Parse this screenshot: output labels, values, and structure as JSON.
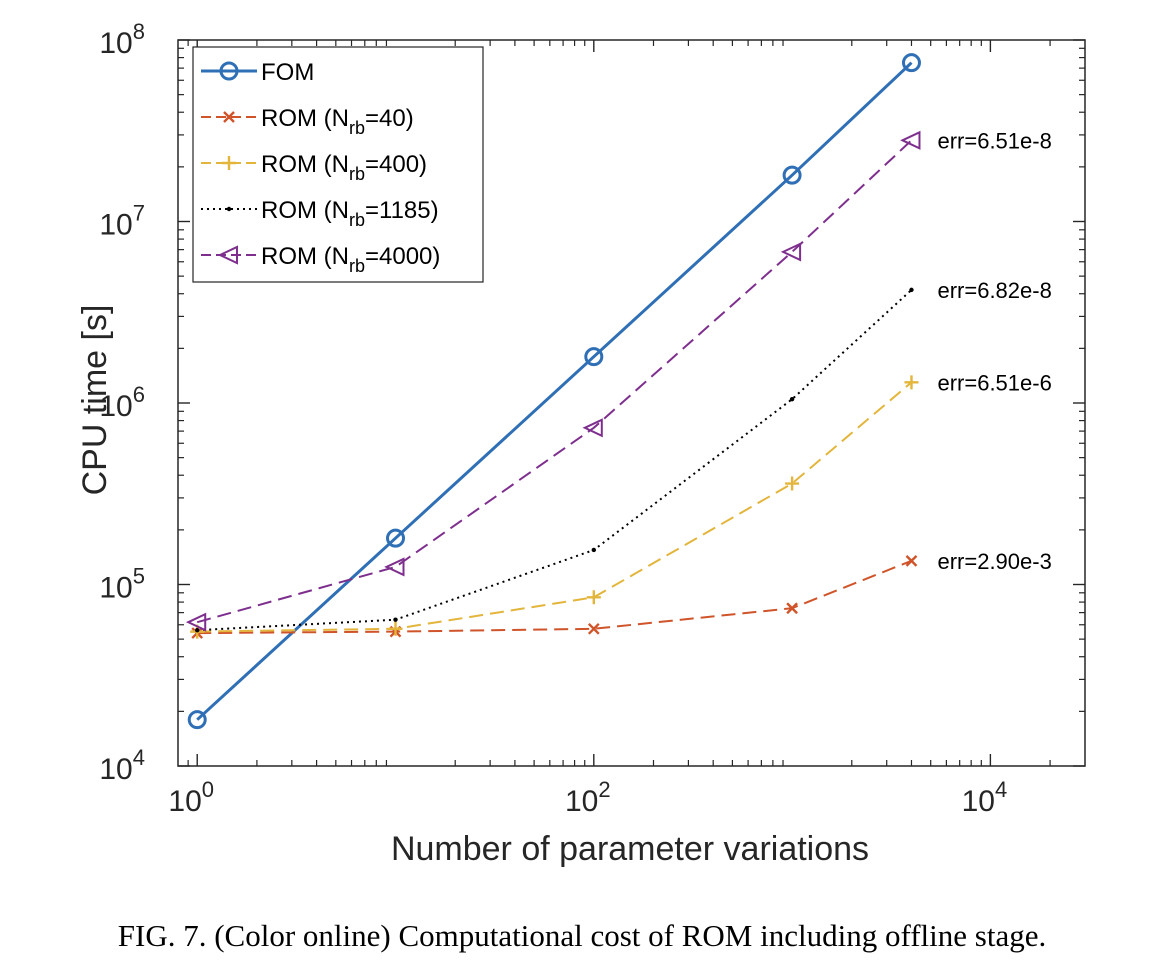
{
  "caption": "FIG. 7. (Color online) Computational cost of ROM including offline stage.",
  "chart_data": {
    "type": "line",
    "xscale": "log",
    "yscale": "log",
    "xlabel": "Number of parameter variations",
    "ylabel": "CPU time [s]",
    "xlim": [
      0.8,
      30000
    ],
    "ylim": [
      10000,
      100000000
    ],
    "grid": false,
    "legend_position": "top-left",
    "x_ticks": [
      {
        "value": 1,
        "base": "10",
        "exp": "0"
      },
      {
        "value": 100,
        "base": "10",
        "exp": "2"
      },
      {
        "value": 10000,
        "base": "10",
        "exp": "4"
      }
    ],
    "y_ticks": [
      {
        "value": 10000,
        "base": "10",
        "exp": "4"
      },
      {
        "value": 100000,
        "base": "10",
        "exp": "5"
      },
      {
        "value": 1000000,
        "base": "10",
        "exp": "6"
      },
      {
        "value": 10000000,
        "base": "10",
        "exp": "7"
      },
      {
        "value": 100000000,
        "base": "10",
        "exp": "8"
      }
    ],
    "series": [
      {
        "name": "FOM",
        "legend_prefix": "FOM",
        "legend_sub": "",
        "legend_suffix": "",
        "color": "#2f6fb5",
        "dash": "solid",
        "marker": "circle",
        "x": [
          1,
          10,
          100,
          1000,
          4000
        ],
        "y": [
          18000,
          180000,
          1800000,
          18000000,
          75000000
        ]
      },
      {
        "name": "ROM (Nrb=40)",
        "legend_prefix": "ROM (N",
        "legend_sub": "rb",
        "legend_suffix": "=40)",
        "color": "#d0542a",
        "dash": "dashed",
        "marker": "x",
        "x": [
          1,
          10,
          100,
          1000,
          4000
        ],
        "y": [
          54000,
          55000,
          57000,
          74000,
          135000
        ]
      },
      {
        "name": "ROM (Nrb=400)",
        "legend_prefix": "ROM (N",
        "legend_sub": "rb",
        "legend_suffix": "=400)",
        "color": "#e3b53b",
        "dash": "dashed",
        "marker": "plus",
        "x": [
          1,
          10,
          100,
          1000,
          4000
        ],
        "y": [
          55000,
          57000,
          85000,
          360000,
          1300000
        ]
      },
      {
        "name": "ROM (Nrb=1185)",
        "legend_prefix": "ROM (N",
        "legend_sub": "rb",
        "legend_suffix": "=1185)",
        "color": "#000000",
        "dash": "dotted",
        "marker": "dot",
        "x": [
          1,
          10,
          100,
          1000,
          4000
        ],
        "y": [
          56000,
          64000,
          155000,
          1050000,
          4200000
        ]
      },
      {
        "name": "ROM (Nrb=4000)",
        "legend_prefix": "ROM (N",
        "legend_sub": "rb",
        "legend_suffix": "=4000)",
        "color": "#7e2f8e",
        "dash": "dashed",
        "marker": "triangle-left",
        "x": [
          1,
          10,
          100,
          1000,
          4000
        ],
        "y": [
          62000,
          125000,
          730000,
          6800000,
          28000000
        ]
      }
    ],
    "annotations": [
      {
        "text": "err=6.51e-8",
        "x": 4000,
        "y": 28000000
      },
      {
        "text": "err=6.82e-8",
        "x": 4000,
        "y": 4200000
      },
      {
        "text": "err=6.51e-6",
        "x": 4000,
        "y": 1300000
      },
      {
        "text": "err=2.90e-3",
        "x": 4000,
        "y": 135000
      }
    ]
  }
}
